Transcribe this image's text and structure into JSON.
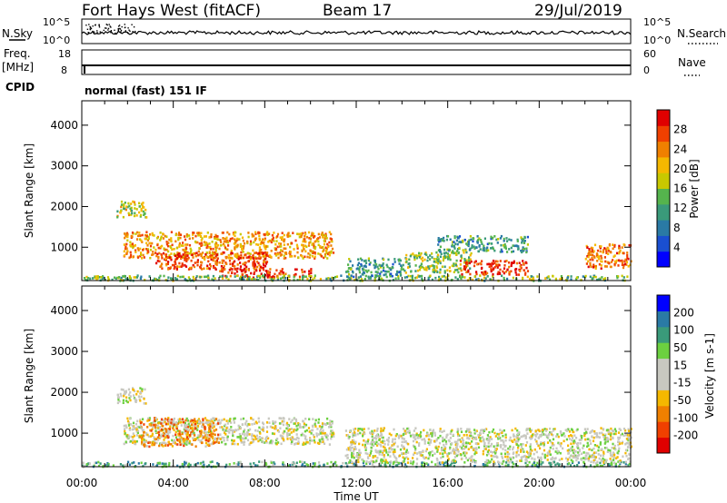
{
  "header": {
    "radar": "Fort Hays West (fitACF)",
    "beam": "Beam 17",
    "date": "29/Jul/2019"
  },
  "status_panels": {
    "nsky_label": "N.Sky",
    "nsky_ticks": [
      "10^5",
      "10^0"
    ],
    "nsearch_label": "N.Search",
    "nsearch_ticks": [
      "10^5",
      "10^0"
    ],
    "freq_label_1": "Freq.",
    "freq_label_2": "[MHz]",
    "freq_ticks": [
      "18",
      "8"
    ],
    "nave_label": "Nave",
    "nave_ticks": [
      "60",
      "0"
    ],
    "cpid_label": "CPID",
    "cpid_text": "normal (fast) 151 IF"
  },
  "chart_data": [
    {
      "type": "heatmap",
      "name": "power",
      "ylabel": "Slant Range [km]",
      "xlabel": "Time UT",
      "y_ticks": [
        "4000",
        "3000",
        "2000",
        "1000"
      ],
      "x_ticks": [
        "00:00",
        "04:00",
        "08:00",
        "12:00",
        "16:00",
        "20:00",
        "00:00"
      ],
      "ylim": [
        180,
        4600
      ],
      "colorbar": {
        "label": "Power [dB]",
        "ticks": [
          "28",
          "24",
          "20",
          "16",
          "12",
          "8",
          "4"
        ],
        "colors": [
          "#0000ff",
          "#1a4fd1",
          "#2a7aa5",
          "#3a9a7a",
          "#55b44d",
          "#c8c800",
          "#f5b800",
          "#f08000",
          "#f04000",
          "#e00000"
        ]
      },
      "echo_regions": [
        {
          "t": [
            1.5,
            2.8
          ],
          "r": [
            1750,
            2150
          ],
          "level": 0.55
        },
        {
          "t": [
            1.8,
            11.0
          ],
          "r": [
            750,
            1400
          ],
          "level": 0.7
        },
        {
          "t": [
            3.2,
            8.2
          ],
          "r": [
            480,
            900
          ],
          "level": 0.85
        },
        {
          "t": [
            6.0,
            10.0
          ],
          "r": [
            280,
            500
          ],
          "level": 0.9
        },
        {
          "t": [
            0.0,
            24.0
          ],
          "r": [
            200,
            330
          ],
          "level": 0.45
        },
        {
          "t": [
            11.5,
            14.0
          ],
          "r": [
            300,
            750
          ],
          "level": 0.35
        },
        {
          "t": [
            14.0,
            17.0
          ],
          "r": [
            400,
            900
          ],
          "level": 0.5
        },
        {
          "t": [
            15.5,
            19.5
          ],
          "r": [
            900,
            1300
          ],
          "level": 0.35
        },
        {
          "t": [
            16.5,
            19.5
          ],
          "r": [
            350,
            700
          ],
          "level": 0.9
        },
        {
          "t": [
            22.0,
            24.0
          ],
          "r": [
            500,
            1100
          ],
          "level": 0.8
        }
      ]
    },
    {
      "type": "heatmap",
      "name": "velocity",
      "ylabel": "Slant Range [km]",
      "xlabel": "Time UT",
      "y_ticks": [
        "4000",
        "3000",
        "2000",
        "1000"
      ],
      "x_ticks": [
        "00:00",
        "04:00",
        "08:00",
        "12:00",
        "16:00",
        "20:00",
        "00:00"
      ],
      "ylim": [
        180,
        4600
      ],
      "colorbar": {
        "label": "Velocity [m s-1]",
        "ticks": [
          "200",
          "100",
          "50",
          "15",
          "-15",
          "-50",
          "-100",
          "-200"
        ],
        "colors": [
          "#e00000",
          "#f04000",
          "#f08000",
          "#f5b800",
          "#c8c8c0",
          "#c8c8c0",
          "#6cd040",
          "#3a9a7a",
          "#2a7aa5",
          "#0000ff"
        ]
      },
      "echo_regions": [
        {
          "t": [
            1.5,
            2.8
          ],
          "r": [
            1750,
            2150
          ],
          "level": 0.5
        },
        {
          "t": [
            1.8,
            11.0
          ],
          "r": [
            750,
            1400
          ],
          "level": 0.5
        },
        {
          "t": [
            2.5,
            6.0
          ],
          "r": [
            700,
            1400
          ],
          "level": 0.3
        },
        {
          "t": [
            0.0,
            24.0
          ],
          "r": [
            200,
            330
          ],
          "level": 0.72
        },
        {
          "t": [
            11.5,
            24.0
          ],
          "r": [
            300,
            1150
          ],
          "level": 0.5
        }
      ]
    }
  ],
  "timeseries_panels": {
    "freq_mhz": 10.5,
    "nave": 30
  }
}
